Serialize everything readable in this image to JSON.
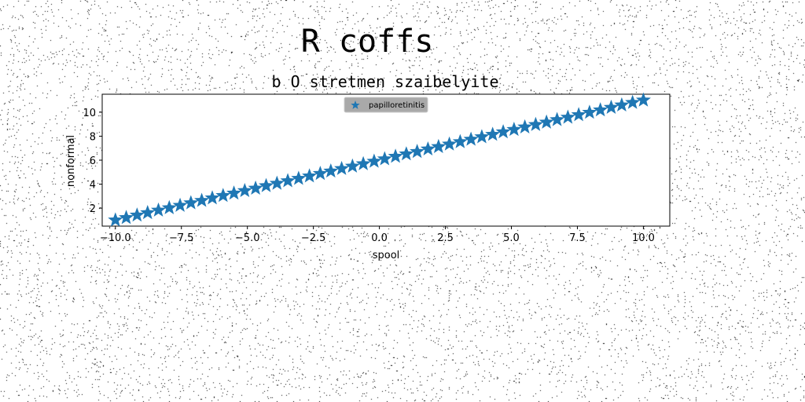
{
  "chart_data": {
    "type": "scatter",
    "suptitle": "R coffs",
    "title": "b O stretmen szaibelyite",
    "xlabel": "spool",
    "ylabel": "nonformal",
    "xlim": [
      -10.5,
      11.0
    ],
    "ylim": [
      0.5,
      11.5
    ],
    "xticks": [
      -10.0,
      -7.5,
      -5.0,
      -2.5,
      0.0,
      2.5,
      5.0,
      7.5,
      10.0
    ],
    "xtick_labels": [
      "−10.0",
      "−7.5",
      "−5.0",
      "−2.5",
      "0.0",
      "2.5",
      "5.0",
      "7.5",
      "10.0"
    ],
    "yticks": [
      2,
      4,
      6,
      8,
      10
    ],
    "ytick_labels": [
      "2",
      "4",
      "6",
      "8",
      "10"
    ],
    "grid": false,
    "legend_position": "top-center",
    "marker": "star",
    "series": [
      {
        "name": "papilloretinitis",
        "color": "#1f77b4",
        "x": [
          -10.0,
          -9.59,
          -9.18,
          -8.78,
          -8.37,
          -7.96,
          -7.55,
          -7.14,
          -6.73,
          -6.33,
          -5.92,
          -5.51,
          -5.1,
          -4.69,
          -4.29,
          -3.88,
          -3.47,
          -3.06,
          -2.65,
          -2.24,
          -1.84,
          -1.43,
          -1.02,
          -0.61,
          -0.2,
          0.2,
          0.61,
          1.02,
          1.43,
          1.84,
          2.24,
          2.65,
          3.06,
          3.47,
          3.88,
          4.29,
          4.69,
          5.1,
          5.51,
          5.92,
          6.33,
          6.73,
          7.14,
          7.55,
          7.96,
          8.37,
          8.78,
          9.18,
          9.59,
          10.0
        ],
        "y": [
          1.0,
          1.2,
          1.41,
          1.61,
          1.82,
          2.02,
          2.22,
          2.43,
          2.63,
          2.84,
          3.04,
          3.24,
          3.45,
          3.65,
          3.86,
          4.06,
          4.27,
          4.47,
          4.67,
          4.88,
          5.08,
          5.29,
          5.49,
          5.69,
          5.9,
          6.1,
          6.31,
          6.51,
          6.71,
          6.92,
          7.12,
          7.33,
          7.53,
          7.73,
          7.94,
          8.14,
          8.35,
          8.55,
          8.76,
          8.96,
          9.16,
          9.37,
          9.57,
          9.78,
          9.98,
          10.18,
          10.39,
          10.59,
          10.8,
          11.0
        ]
      }
    ]
  }
}
